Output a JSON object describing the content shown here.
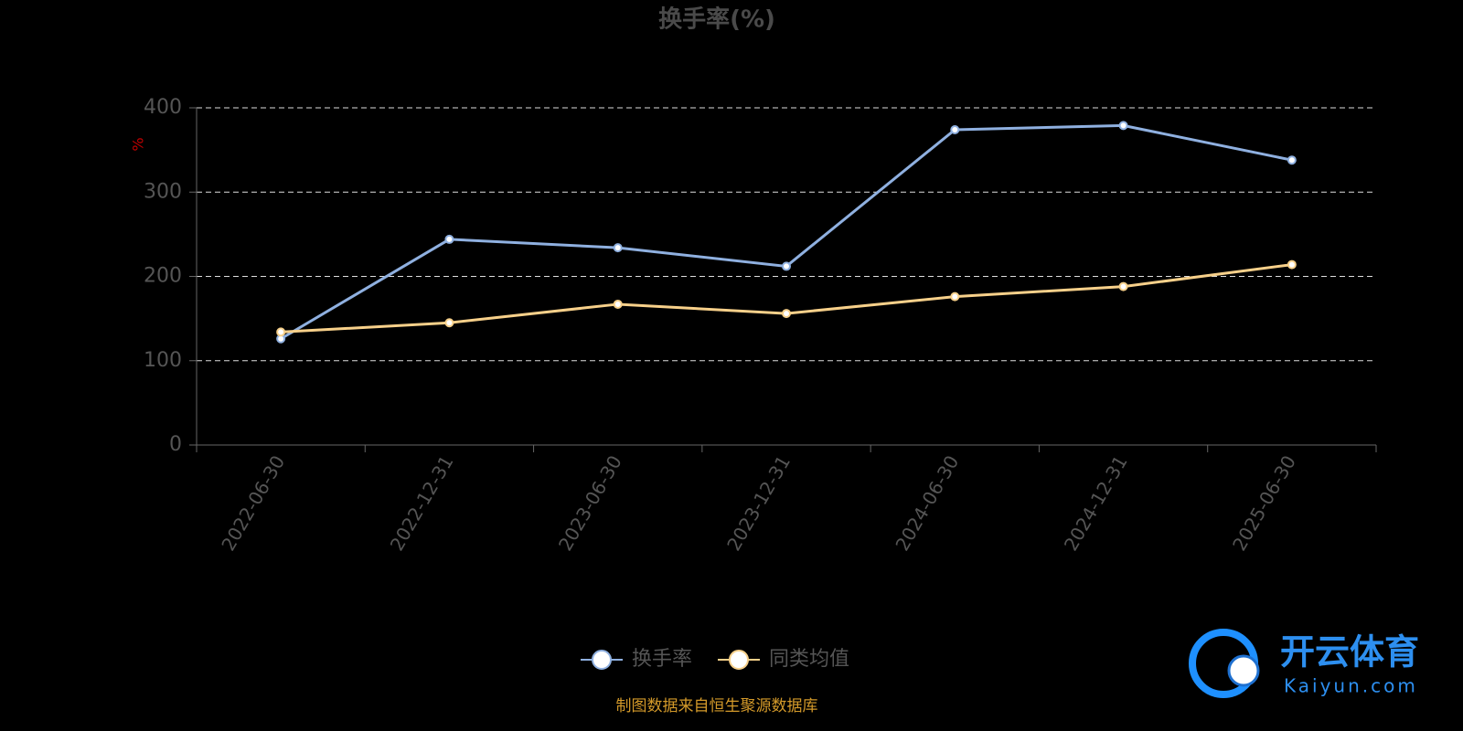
{
  "chart_data": {
    "type": "line",
    "title": "换手率(%)",
    "y_label": "%",
    "categories": [
      "2022-06-30",
      "2022-12-31",
      "2023-06-30",
      "2023-12-31",
      "2024-06-30",
      "2024-12-31",
      "2025-06-30"
    ],
    "series": [
      {
        "name": "换手率",
        "color": "#8fb0e0",
        "values": [
          126,
          244,
          234,
          212,
          374,
          379,
          338
        ]
      },
      {
        "name": "同类均值",
        "color": "#f7d08a",
        "values": [
          134,
          145,
          167,
          156,
          176,
          188,
          214
        ]
      }
    ],
    "ylim": [
      0,
      400
    ],
    "yticks": [
      0,
      100,
      200,
      300,
      400
    ],
    "grid": true,
    "legend": "bottom",
    "source": "制图数据来自恒生聚源数据库"
  },
  "watermark": {
    "text": "开云体育",
    "subtext": "Kaiyun.com"
  }
}
